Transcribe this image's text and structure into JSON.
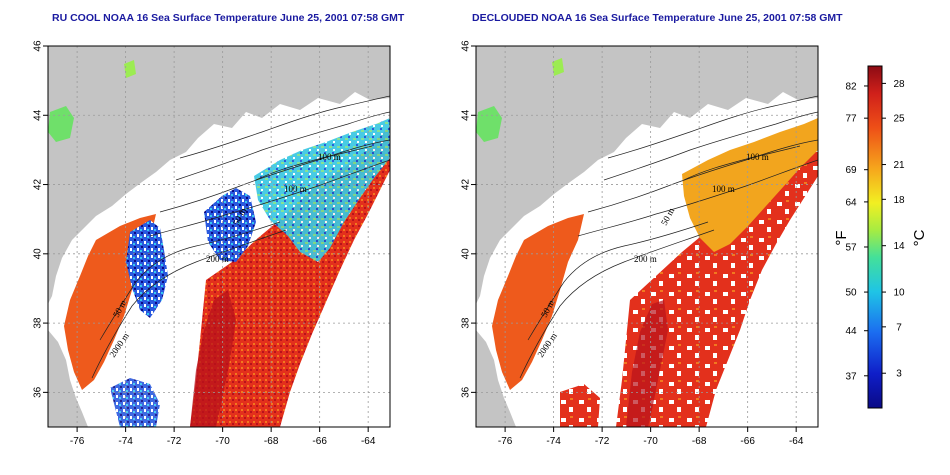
{
  "panels": [
    {
      "id": "left",
      "title": "RU COOL NOAA 16 Sea Surface Temperature June 25, 2001 07:58 GMT",
      "cloud_masked": false
    },
    {
      "id": "right",
      "title": "DECLOUDED NOAA 16 Sea Surface Temperature June 25, 2001 07:58 GMT",
      "cloud_masked": true
    }
  ],
  "axes": {
    "x_ticks": [
      "-76",
      "-74",
      "-72",
      "-70",
      "-68",
      "-66",
      "-64"
    ],
    "y_ticks": [
      "36",
      "38",
      "40",
      "42",
      "44",
      "46"
    ],
    "xlim": [
      -77.2,
      -63.1
    ],
    "ylim": [
      35.0,
      46.0
    ],
    "grid": "dotted"
  },
  "contour_labels": [
    "100 m",
    "100 m",
    "50 m",
    "200 m",
    "50 m",
    "2000 m"
  ],
  "colorbar": {
    "fahrenheit_label": "°F",
    "celsius_label": "°C",
    "fahrenheit_ticks": [
      "82",
      "77",
      "69",
      "64",
      "57",
      "50",
      "44",
      "37"
    ],
    "celsius_ticks": [
      "28",
      "25",
      "21",
      "18",
      "14",
      "10",
      "7",
      "3"
    ],
    "celsius_range": [
      0,
      29.5
    ]
  },
  "colors": {
    "land": "#c4c4c4",
    "no_data": "#ffffff",
    "title": "#1a1aa0",
    "warm": "#e8311d",
    "hot": "#b8121b",
    "mild": "#f07a1e",
    "cool": "#1633c7",
    "cold": "#0a0a86",
    "green": "#6fe06a"
  }
}
